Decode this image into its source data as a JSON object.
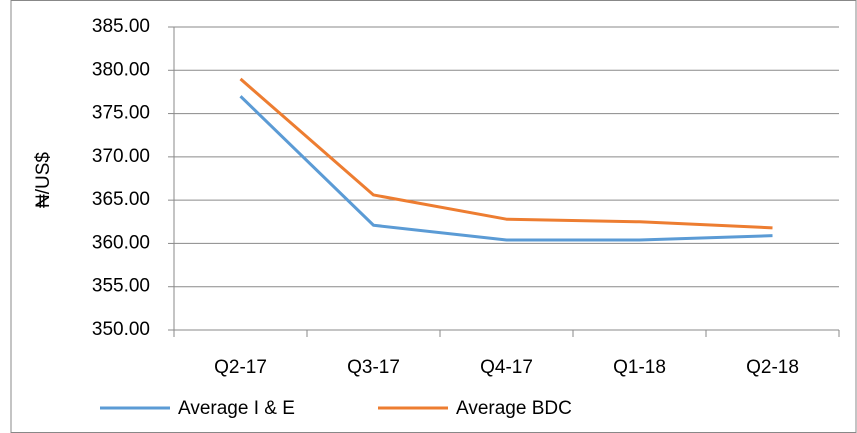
{
  "chart_data": {
    "type": "line",
    "y_label": "₦/US$",
    "categories": [
      "Q2-17",
      "Q3-17",
      "Q4-17",
      "Q1-18",
      "Q2-18"
    ],
    "series": [
      {
        "name": "Average I & E",
        "color": "#5b9bd5",
        "values": [
          377.0,
          362.1,
          360.4,
          360.4,
          360.9
        ]
      },
      {
        "name": "Average BDC",
        "color": "#ed7d31",
        "values": [
          379.0,
          365.6,
          362.8,
          362.5,
          361.8
        ]
      }
    ],
    "ylim": [
      350,
      385
    ],
    "yticks": [
      {
        "value": 350,
        "label": "350.00"
      },
      {
        "value": 355,
        "label": "355.00"
      },
      {
        "value": 360,
        "label": "360.00"
      },
      {
        "value": 365,
        "label": "365.00"
      },
      {
        "value": 370,
        "label": "370.00"
      },
      {
        "value": 375,
        "label": "375.00"
      },
      {
        "value": 380,
        "label": "380.00"
      },
      {
        "value": 385,
        "label": "385.00"
      }
    ],
    "grid": true,
    "legend": "bottom"
  }
}
